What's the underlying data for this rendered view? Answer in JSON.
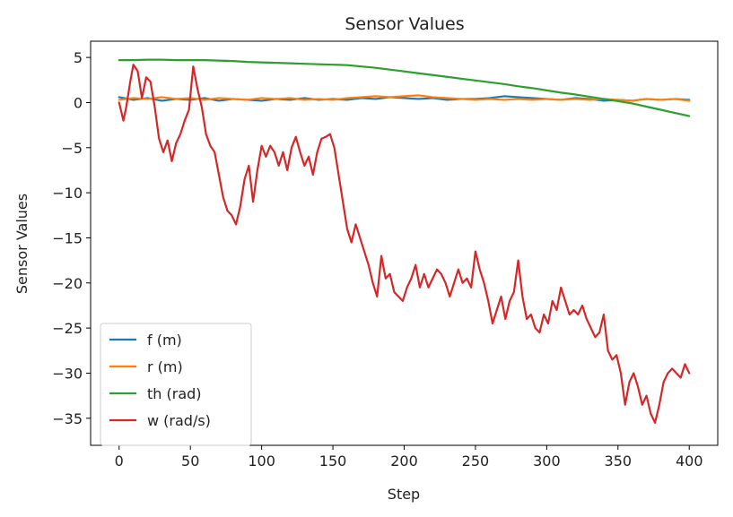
{
  "chart_data": {
    "type": "line",
    "title": "Sensor Values",
    "xlabel": "Step",
    "ylabel": "Sensor Values",
    "xlim": [
      -20,
      420
    ],
    "ylim": [
      -38,
      6.8
    ],
    "xticks": [
      0,
      50,
      100,
      150,
      200,
      250,
      300,
      350,
      400
    ],
    "yticks": [
      5,
      0,
      -5,
      -10,
      -15,
      -20,
      -25,
      -30,
      -35
    ],
    "xtick_labels": [
      "0",
      "50",
      "100",
      "150",
      "200",
      "250",
      "300",
      "350",
      "400"
    ],
    "ytick_labels": [
      "5",
      "0",
      "−5",
      "−10",
      "−15",
      "−20",
      "−25",
      "−30",
      "−35"
    ],
    "grid": false,
    "legend_position": "lower-left",
    "series": [
      {
        "name": "f (m)",
        "color": "#1f77b4",
        "x": [
          0,
          10,
          20,
          30,
          40,
          50,
          60,
          70,
          80,
          90,
          100,
          110,
          120,
          130,
          140,
          150,
          160,
          170,
          180,
          190,
          200,
          210,
          220,
          230,
          240,
          250,
          260,
          270,
          280,
          290,
          300,
          310,
          320,
          330,
          340,
          350,
          360,
          370,
          380,
          390,
          400
        ],
        "values": [
          0.6,
          0.3,
          0.5,
          0.2,
          0.4,
          0.3,
          0.5,
          0.2,
          0.4,
          0.3,
          0.2,
          0.4,
          0.3,
          0.5,
          0.3,
          0.4,
          0.3,
          0.5,
          0.4,
          0.6,
          0.5,
          0.4,
          0.5,
          0.3,
          0.4,
          0.4,
          0.5,
          0.7,
          0.6,
          0.5,
          0.4,
          0.3,
          0.5,
          0.4,
          0.2,
          0.3,
          0.2,
          0.4,
          0.3,
          0.4,
          0.3
        ]
      },
      {
        "name": "r (m)",
        "color": "#ff7f0e",
        "x": [
          0,
          10,
          20,
          30,
          40,
          50,
          60,
          70,
          80,
          90,
          100,
          110,
          120,
          130,
          140,
          150,
          160,
          170,
          180,
          190,
          200,
          210,
          220,
          230,
          240,
          250,
          260,
          270,
          280,
          290,
          300,
          310,
          320,
          330,
          340,
          350,
          360,
          370,
          380,
          390,
          400
        ],
        "values": [
          0.3,
          0.5,
          0.4,
          0.6,
          0.4,
          0.5,
          0.3,
          0.5,
          0.4,
          0.3,
          0.5,
          0.4,
          0.5,
          0.3,
          0.4,
          0.3,
          0.5,
          0.6,
          0.7,
          0.6,
          0.7,
          0.8,
          0.6,
          0.5,
          0.4,
          0.3,
          0.4,
          0.3,
          0.4,
          0.3,
          0.4,
          0.3,
          0.4,
          0.3,
          0.4,
          0.3,
          0.2,
          0.4,
          0.3,
          0.4,
          0.2
        ]
      },
      {
        "name": "th (rad)",
        "color": "#2ca02c",
        "x": [
          0,
          10,
          20,
          30,
          40,
          50,
          60,
          70,
          80,
          90,
          100,
          110,
          120,
          130,
          140,
          150,
          160,
          170,
          180,
          190,
          200,
          210,
          220,
          230,
          240,
          250,
          260,
          270,
          280,
          290,
          300,
          310,
          320,
          330,
          340,
          350,
          360,
          370,
          380,
          390,
          400
        ],
        "values": [
          4.7,
          4.7,
          4.75,
          4.75,
          4.7,
          4.7,
          4.7,
          4.65,
          4.6,
          4.5,
          4.45,
          4.4,
          4.35,
          4.3,
          4.25,
          4.2,
          4.15,
          4.0,
          3.85,
          3.65,
          3.45,
          3.25,
          3.05,
          2.85,
          2.65,
          2.45,
          2.25,
          2.05,
          1.8,
          1.6,
          1.35,
          1.1,
          0.9,
          0.65,
          0.4,
          0.15,
          -0.1,
          -0.45,
          -0.8,
          -1.15,
          -1.5
        ]
      },
      {
        "name": "w (rad/s)",
        "color": "#d62728",
        "x": [
          0,
          3,
          5,
          8,
          10,
          13,
          16,
          19,
          22,
          25,
          28,
          31,
          34,
          37,
          40,
          43,
          46,
          49,
          52,
          55,
          58,
          61,
          64,
          67,
          70,
          73,
          76,
          79,
          82,
          85,
          88,
          91,
          94,
          97,
          100,
          103,
          106,
          109,
          112,
          115,
          118,
          121,
          124,
          127,
          130,
          133,
          136,
          139,
          142,
          145,
          148,
          151,
          154,
          157,
          160,
          163,
          166,
          169,
          172,
          175,
          178,
          181,
          184,
          187,
          190,
          193,
          196,
          199,
          202,
          205,
          208,
          211,
          214,
          217,
          220,
          223,
          226,
          229,
          232,
          235,
          238,
          241,
          244,
          247,
          250,
          253,
          256,
          259,
          262,
          265,
          268,
          271,
          274,
          277,
          280,
          283,
          286,
          289,
          292,
          295,
          298,
          301,
          304,
          307,
          310,
          313,
          316,
          319,
          322,
          325,
          328,
          331,
          334,
          337,
          340,
          343,
          346,
          349,
          352,
          355,
          358,
          361,
          364,
          367,
          370,
          373,
          376,
          379,
          382,
          385,
          388,
          391,
          394,
          397,
          400
        ],
        "values": [
          0.0,
          -2.0,
          -0.5,
          2.5,
          4.2,
          3.5,
          0.5,
          2.8,
          2.3,
          -0.5,
          -4.0,
          -5.5,
          -4.2,
          -6.5,
          -4.5,
          -3.5,
          -2.0,
          -0.8,
          4.0,
          1.5,
          -0.5,
          -3.5,
          -4.8,
          -5.5,
          -8.0,
          -10.5,
          -12.0,
          -12.5,
          -13.5,
          -11.5,
          -8.5,
          -7.0,
          -11.0,
          -7.5,
          -4.8,
          -6.0,
          -4.8,
          -5.5,
          -7.0,
          -5.5,
          -7.5,
          -5.0,
          -3.8,
          -5.5,
          -7.0,
          -6.0,
          -8.0,
          -5.5,
          -4.0,
          -3.8,
          -3.5,
          -5.0,
          -8.0,
          -11.0,
          -14.0,
          -15.5,
          -13.5,
          -15.0,
          -16.5,
          -18.0,
          -20.0,
          -21.5,
          -17.0,
          -19.5,
          -19.0,
          -21.0,
          -21.5,
          -22.0,
          -20.5,
          -19.5,
          -18.0,
          -20.5,
          -19.0,
          -20.5,
          -19.5,
          -18.5,
          -19.0,
          -20.0,
          -21.5,
          -20.0,
          -18.5,
          -20.0,
          -19.5,
          -20.5,
          -16.5,
          -18.5,
          -20.0,
          -22.0,
          -24.5,
          -23.0,
          -21.5,
          -24.0,
          -22.0,
          -21.0,
          -17.5,
          -21.5,
          -24.0,
          -23.5,
          -25.0,
          -25.5,
          -23.5,
          -24.5,
          -22.0,
          -23.0,
          -20.5,
          -22.0,
          -23.5,
          -23.0,
          -23.5,
          -22.5,
          -24.0,
          -25.0,
          -26.0,
          -25.5,
          -23.5,
          -27.5,
          -28.5,
          -28.0,
          -30.0,
          -33.5,
          -31.0,
          -30.0,
          -31.5,
          -33.5,
          -32.5,
          -34.5,
          -35.5,
          -33.5,
          -31.0,
          -30.0,
          -29.5,
          -30.0,
          -30.5,
          -29.0,
          -30.0
        ]
      }
    ]
  }
}
